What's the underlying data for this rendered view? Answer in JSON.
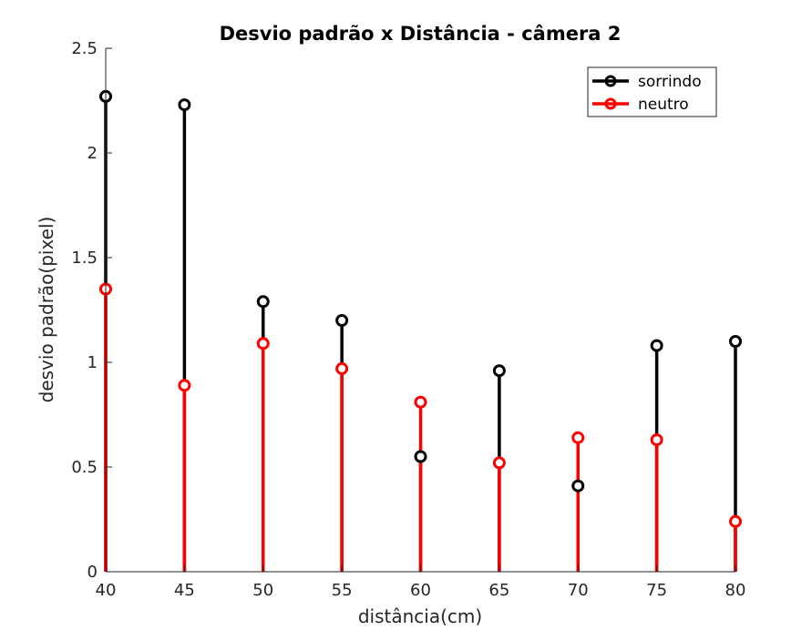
{
  "chart_data": {
    "type": "stem",
    "title": "Desvio padrão x Distância - câmera 2",
    "xlabel": "distância(cm)",
    "ylabel": "desvio padrão(pixel)",
    "xlim": [
      40,
      80
    ],
    "ylim": [
      0,
      2.5
    ],
    "x_ticks": [
      "40",
      "45",
      "50",
      "55",
      "60",
      "65",
      "70",
      "75",
      "80"
    ],
    "y_ticks": [
      "0",
      "0.5",
      "1",
      "1.5",
      "2",
      "2.5"
    ],
    "x": [
      40,
      45,
      50,
      55,
      60,
      65,
      70,
      75,
      80
    ],
    "grid": false,
    "legend_position": "top-right",
    "series": [
      {
        "name": "sorrindo",
        "color": "#000000",
        "marker": "circle",
        "values": [
          2.27,
          2.23,
          1.29,
          1.2,
          0.55,
          0.96,
          0.41,
          1.08,
          1.1
        ]
      },
      {
        "name": "neutro",
        "color": "#ff0000",
        "marker": "circle",
        "values": [
          1.35,
          0.89,
          1.09,
          0.97,
          0.81,
          0.52,
          0.64,
          0.63,
          0.24
        ]
      }
    ]
  }
}
